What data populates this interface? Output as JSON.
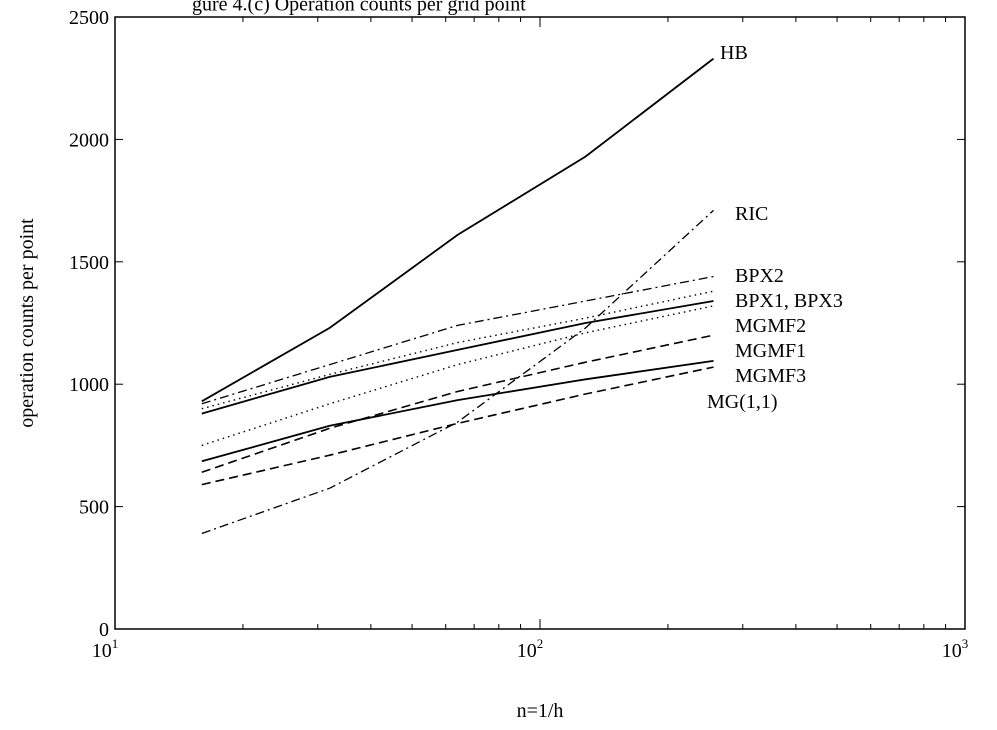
{
  "chart_data": {
    "type": "line",
    "title": "gure 4.(c) Operation counts per grid point",
    "xlabel": "n=1/h",
    "ylabel": "operation counts per point",
    "x_scale": "log",
    "xlim": [
      10,
      1000
    ],
    "ylim": [
      0,
      2500
    ],
    "x_ticks": [
      {
        "base": "10",
        "exp": "1"
      },
      {
        "base": "10",
        "exp": "2"
      },
      {
        "base": "10",
        "exp": "3"
      }
    ],
    "y_ticks": [
      "0",
      "500",
      "1000",
      "1500",
      "2000",
      "2500"
    ],
    "grid": false,
    "legend": "inline labels at line ends",
    "series": [
      {
        "name": "HB",
        "style": "solid",
        "x": [
          16,
          32,
          64,
          128,
          256
        ],
        "y": [
          930,
          1230,
          1610,
          1930,
          2330
        ]
      },
      {
        "name": "RIC",
        "style": "dashdot",
        "x": [
          16,
          32,
          64,
          128,
          256
        ],
        "y": [
          390,
          575,
          845,
          1230,
          1710
        ]
      },
      {
        "name": "BPX2",
        "style": "dashdot",
        "x": [
          16,
          32,
          64,
          128,
          256
        ],
        "y": [
          920,
          1080,
          1240,
          1340,
          1440
        ]
      },
      {
        "name": "BPX1, BPX3",
        "style": "dotted",
        "x": [
          16,
          32,
          64,
          128,
          256
        ],
        "y": [
          900,
          1040,
          1170,
          1270,
          1380
        ]
      },
      {
        "name": "BPX1, BPX3",
        "style": "dotted",
        "x": [
          16,
          32,
          64,
          128,
          256
        ],
        "y": [
          750,
          920,
          1080,
          1210,
          1320
        ]
      },
      {
        "name": "MGMF2",
        "style": "solid",
        "x": [
          16,
          32,
          64,
          128,
          256
        ],
        "y": [
          880,
          1030,
          1140,
          1250,
          1340
        ]
      },
      {
        "name": "MGMF1",
        "style": "dashed",
        "x": [
          16,
          32,
          64,
          128,
          256
        ],
        "y": [
          640,
          820,
          970,
          1090,
          1200
        ]
      },
      {
        "name": "MGMF3",
        "style": "solid",
        "x": [
          16,
          32,
          64,
          128,
          256
        ],
        "y": [
          685,
          830,
          935,
          1020,
          1095
        ]
      },
      {
        "name": "MG(1,1)",
        "style": "dashed",
        "x": [
          16,
          32,
          64,
          128,
          256
        ],
        "y": [
          590,
          710,
          840,
          960,
          1070
        ]
      }
    ]
  }
}
